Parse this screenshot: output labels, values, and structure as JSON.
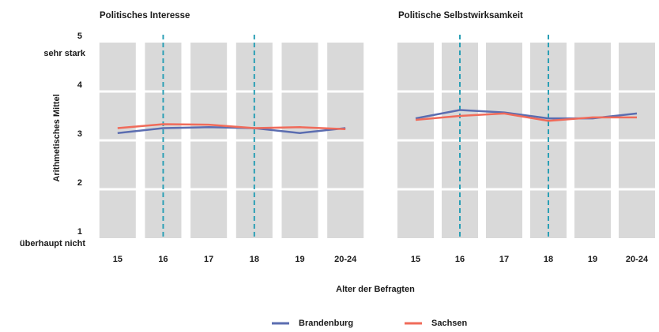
{
  "shared": {
    "ylabel": "Arithmetisches Mittel",
    "xlabel": "Alter der Befragten",
    "y_top_note": "sehr stark",
    "y_bottom_note": "überhaupt nicht"
  },
  "chart_data": [
    {
      "type": "line",
      "title": "Politisches Interesse",
      "categories": [
        "15",
        "16",
        "17",
        "18",
        "19",
        "20-24"
      ],
      "series": [
        {
          "name": "Brandenburg",
          "color": "#5b6db0",
          "values": [
            3.15,
            3.25,
            3.27,
            3.25,
            3.15,
            3.25
          ]
        },
        {
          "name": "Sachsen",
          "color": "#f06b5a",
          "values": [
            3.25,
            3.33,
            3.32,
            3.25,
            3.27,
            3.23
          ]
        }
      ],
      "ylim": [
        1,
        5
      ],
      "yticks": [
        1,
        2,
        3,
        4,
        5
      ],
      "grid": true
    },
    {
      "type": "line",
      "title": "Politische Selbstwirksamkeit",
      "categories": [
        "15",
        "16",
        "17",
        "18",
        "19",
        "20-24"
      ],
      "series": [
        {
          "color": "#5b6db0",
          "values": [
            3.45,
            3.62,
            3.57,
            3.45,
            3.45,
            3.55
          ]
        },
        {
          "color": "#f06b5a",
          "values": [
            3.42,
            3.5,
            3.55,
            3.4,
            3.47,
            3.47
          ]
        }
      ],
      "ylim": [
        1,
        5
      ],
      "grid": true
    }
  ]
}
